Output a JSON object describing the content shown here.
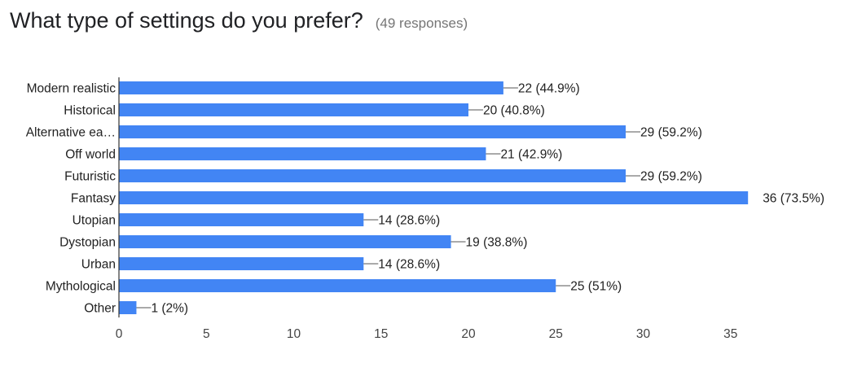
{
  "title": "What type of settings do you prefer?",
  "subtitle": "(49 responses)",
  "colors": {
    "bar": "#4285f4",
    "axis": "#333333",
    "leader": "#555555"
  },
  "chart_data": {
    "type": "bar",
    "orientation": "horizontal",
    "categories": [
      "Modern realistic",
      "Historical",
      "Alternative ea…",
      "Off world",
      "Futuristic",
      "Fantasy",
      "Utopian",
      "Dystopian",
      "Urban",
      "Mythological",
      "Other"
    ],
    "values": [
      22,
      20,
      29,
      21,
      29,
      36,
      14,
      19,
      14,
      25,
      1
    ],
    "data_labels": [
      "22 (44.9%)",
      "20 (40.8%)",
      "29 (59.2%)",
      "21 (42.9%)",
      "29 (59.2%)",
      "36 (73.5%)",
      "14 (28.6%)",
      "19 (38.8%)",
      "14 (28.6%)",
      "25 (51%)",
      "1 (2%)"
    ],
    "xticks": [
      0,
      5,
      10,
      15,
      20,
      25,
      30,
      35
    ],
    "xlim": [
      0,
      36
    ],
    "grid": false,
    "legend": "none"
  }
}
